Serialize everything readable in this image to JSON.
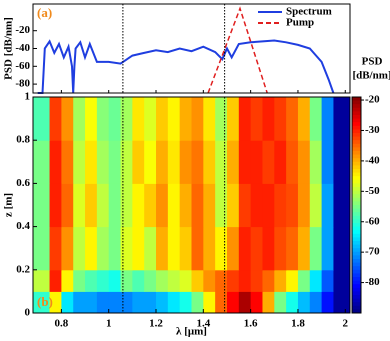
{
  "chart_data": [
    {
      "type": "line",
      "panel_label": "(a)",
      "ylabel": "PSD [dB/nm]",
      "xlim": [
        0.68,
        2.02
      ],
      "ylim": [
        -90,
        10
      ],
      "yticks": [
        -20,
        -40,
        -60,
        -80
      ],
      "legend": "top-right",
      "vlines": [
        1.06,
        1.49
      ],
      "series": [
        {
          "name": "Spectrum",
          "color": "#1f3ee0",
          "dash": false,
          "x": [
            0.7,
            0.72,
            0.73,
            0.75,
            0.77,
            0.79,
            0.81,
            0.83,
            0.845,
            0.85,
            0.855,
            0.86,
            0.88,
            0.9,
            0.92,
            0.95,
            1.0,
            1.05,
            1.1,
            1.15,
            1.2,
            1.25,
            1.3,
            1.35,
            1.4,
            1.45,
            1.48,
            1.5,
            1.52,
            1.55,
            1.6,
            1.65,
            1.7,
            1.75,
            1.8,
            1.85,
            1.9,
            1.93,
            1.95
          ],
          "values": [
            -90,
            -90,
            -40,
            -32,
            -45,
            -35,
            -50,
            -38,
            -60,
            -90,
            -60,
            -40,
            -33,
            -50,
            -35,
            -55,
            -55,
            -57,
            -48,
            -45,
            -42,
            -44,
            -40,
            -43,
            -38,
            -44,
            -52,
            -40,
            -50,
            -35,
            -33,
            -32,
            -31,
            -33,
            -36,
            -40,
            -55,
            -75,
            -90
          ]
        },
        {
          "name": "Pump",
          "color": "#e01f1f",
          "dash": true,
          "x": [
            1.42,
            1.555,
            1.67
          ],
          "values": [
            -90,
            5,
            -90
          ]
        }
      ]
    },
    {
      "type": "heatmap",
      "panel_label": "(b)",
      "xlabel": "λ [μm]",
      "ylabel": "z [m]",
      "xlim": [
        0.68,
        2.02
      ],
      "ylim": [
        0,
        1
      ],
      "xticks": [
        0.8,
        1,
        1.2,
        1.4,
        1.6,
        1.8,
        2
      ],
      "yticks": [
        0,
        0.2,
        0.4,
        0.6,
        0.8,
        1
      ],
      "vlines": [
        1.06,
        1.49
      ],
      "xbins": [
        0.68,
        0.75,
        0.8,
        0.85,
        0.9,
        0.95,
        1.0,
        1.05,
        1.1,
        1.15,
        1.2,
        1.25,
        1.3,
        1.35,
        1.4,
        1.45,
        1.5,
        1.55,
        1.6,
        1.65,
        1.7,
        1.75,
        1.8,
        1.85,
        1.9,
        1.95,
        2.02
      ],
      "ybins": [
        0,
        0.1,
        0.2,
        0.4,
        0.6,
        0.8,
        1
      ],
      "clim": [
        -90,
        -19
      ],
      "colorbar_label": [
        "PSD",
        "[dB/nm]"
      ],
      "colorbar_ticks": [
        -20,
        -30,
        -40,
        -50,
        -60,
        -70,
        -80
      ],
      "z": [
        [
          -60,
          -45,
          -65,
          -70,
          -70,
          -72,
          -72,
          -72,
          -70,
          -70,
          -68,
          -65,
          -62,
          -55,
          -45,
          -35,
          -28,
          -22,
          -28,
          -40,
          -55,
          -62,
          -68,
          -72,
          -80,
          -88
        ],
        [
          -50,
          -30,
          -45,
          -55,
          -58,
          -60,
          -62,
          -55,
          -58,
          -55,
          -52,
          -50,
          -48,
          -42,
          -38,
          -35,
          -32,
          -30,
          -32,
          -35,
          -40,
          -45,
          -55,
          -65,
          -75,
          -88
        ],
        [
          -55,
          -32,
          -38,
          -50,
          -45,
          -52,
          -55,
          -48,
          -45,
          -50,
          -40,
          -45,
          -42,
          -35,
          -40,
          -45,
          -38,
          -30,
          -32,
          -30,
          -33,
          -35,
          -40,
          -55,
          -70,
          -88
        ],
        [
          -55,
          -30,
          -35,
          -48,
          -42,
          -50,
          -55,
          -50,
          -45,
          -42,
          -38,
          -45,
          -40,
          -35,
          -40,
          -50,
          -42,
          -32,
          -30,
          -30,
          -32,
          -33,
          -38,
          -50,
          -70,
          -88
        ],
        [
          -55,
          -30,
          -36,
          -50,
          -44,
          -52,
          -55,
          -50,
          -42,
          -46,
          -40,
          -44,
          -38,
          -36,
          -42,
          -50,
          -40,
          -30,
          -30,
          -32,
          -30,
          -34,
          -38,
          -52,
          -72,
          -88
        ],
        [
          -58,
          -32,
          -38,
          -52,
          -46,
          -54,
          -56,
          -52,
          -44,
          -48,
          -42,
          -45,
          -40,
          -38,
          -44,
          -52,
          -42,
          -30,
          -32,
          -30,
          -32,
          -35,
          -40,
          -55,
          -72,
          -88
        ]
      ]
    }
  ]
}
